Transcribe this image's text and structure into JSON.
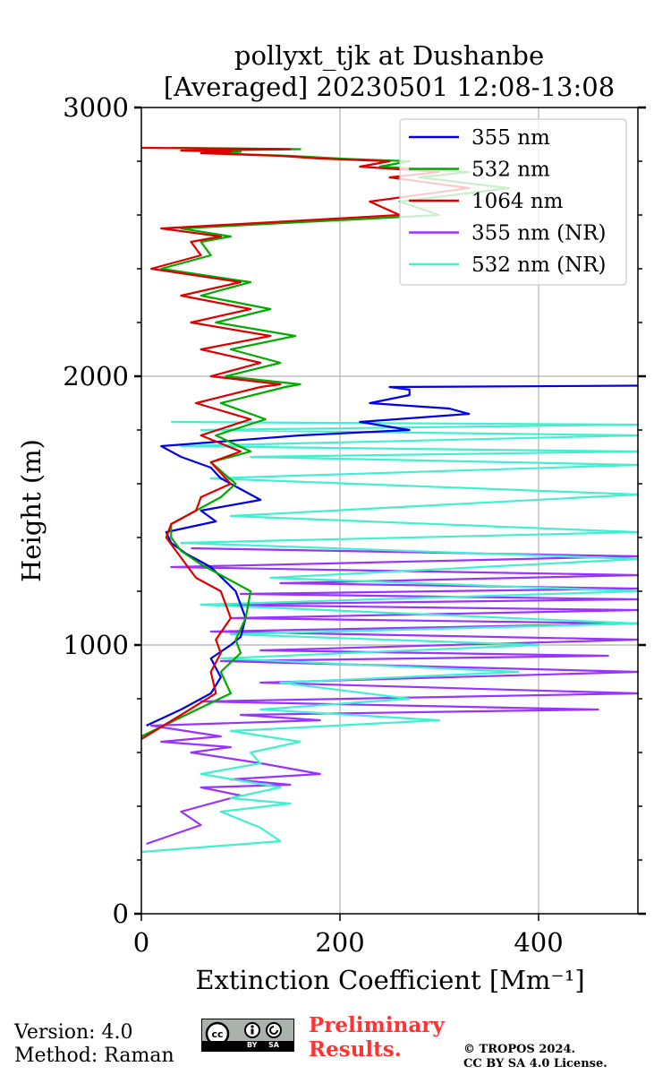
{
  "chart_data": {
    "type": "line",
    "title": "pollyxt_tjk at Dushanbe",
    "subtitle": "[Averaged] 20230501 12:08-13:08",
    "xlabel": "Extinction Coefficient [Mm⁻¹]",
    "ylabel": "Height (m)",
    "xlim": [
      0,
      500
    ],
    "ylim": [
      0,
      3000
    ],
    "xticks": [
      0,
      200,
      400
    ],
    "yticks": [
      0,
      1000,
      2000,
      3000
    ],
    "grid": true,
    "legend_position": "top-right",
    "series": [
      {
        "name": "355 nm",
        "color": "#0000e6",
        "x": [
          5,
          40,
          70,
          80,
          70,
          90,
          100,
          105,
          95,
          70,
          45,
          30,
          25,
          75,
          60,
          120,
          100,
          80,
          70,
          40,
          20,
          160,
          270,
          220,
          330,
          310,
          230,
          270,
          270,
          250,
          500
        ],
        "y": [
          700,
          760,
          820,
          880,
          950,
          1000,
          1030,
          1100,
          1200,
          1290,
          1340,
          1380,
          1420,
          1460,
          1500,
          1540,
          1580,
          1620,
          1660,
          1700,
          1740,
          1780,
          1800,
          1830,
          1860,
          1880,
          1900,
          1930,
          1950,
          1960,
          1965
        ]
      },
      {
        "name": "532 nm",
        "color": "#00aa00",
        "x": [
          0,
          45,
          90,
          80,
          100,
          95,
          105,
          110,
          85,
          60,
          40,
          30,
          30,
          55,
          80,
          95,
          70,
          110,
          75,
          125,
          80,
          145,
          160,
          85,
          140,
          90,
          155,
          75,
          130,
          60,
          110,
          20,
          70,
          60,
          90,
          40,
          300,
          260,
          370,
          280,
          330,
          240,
          270,
          200,
          150,
          70,
          100,
          60,
          160,
          30
        ],
        "y": [
          660,
          740,
          820,
          900,
          970,
          1020,
          1100,
          1200,
          1250,
          1300,
          1350,
          1400,
          1450,
          1500,
          1550,
          1600,
          1680,
          1720,
          1780,
          1840,
          1900,
          1960,
          1970,
          2000,
          2050,
          2100,
          2150,
          2200,
          2250,
          2300,
          2350,
          2400,
          2450,
          2500,
          2520,
          2550,
          2600,
          2650,
          2700,
          2740,
          2760,
          2780,
          2800,
          2810,
          2820,
          2830,
          2835,
          2840,
          2845,
          2850
        ]
      },
      {
        "name": "1064 nm",
        "color": "#dd0000",
        "x": [
          0,
          40,
          75,
          70,
          80,
          75,
          90,
          80,
          55,
          45,
          35,
          25,
          30,
          55,
          60,
          90,
          70,
          100,
          60,
          110,
          55,
          120,
          140,
          70,
          120,
          60,
          130,
          50,
          110,
          40,
          100,
          10,
          60,
          50,
          80,
          20,
          260,
          230,
          330,
          250,
          300,
          220,
          250,
          180,
          140,
          60,
          90,
          40,
          150,
          0
        ],
        "y": [
          650,
          740,
          820,
          900,
          970,
          1020,
          1100,
          1200,
          1250,
          1300,
          1350,
          1400,
          1450,
          1500,
          1550,
          1600,
          1680,
          1720,
          1780,
          1840,
          1900,
          1960,
          1970,
          2000,
          2050,
          2100,
          2150,
          2200,
          2250,
          2300,
          2350,
          2400,
          2450,
          2500,
          2520,
          2550,
          2600,
          2650,
          2700,
          2740,
          2760,
          2780,
          2800,
          2810,
          2820,
          2830,
          2835,
          2840,
          2845,
          2850
        ]
      },
      {
        "name": "355 nm (NR)",
        "color": "#9933ff",
        "x": [
          5,
          60,
          40,
          100,
          60,
          150,
          90,
          180,
          120,
          50,
          90,
          20,
          80,
          10,
          180,
          100,
          460,
          60,
          500,
          120,
          500,
          80,
          470,
          120,
          500,
          70,
          500,
          90,
          500,
          60,
          500,
          100,
          500,
          140,
          500,
          30,
          500,
          50
        ],
        "y": [
          260,
          330,
          380,
          440,
          470,
          480,
          500,
          520,
          560,
          600,
          620,
          640,
          660,
          700,
          720,
          740,
          760,
          790,
          820,
          860,
          900,
          940,
          960,
          980,
          1020,
          1050,
          1080,
          1100,
          1130,
          1150,
          1170,
          1190,
          1210,
          1230,
          1260,
          1290,
          1330,
          1360
        ]
      },
      {
        "name": "532 nm (NR)",
        "color": "#40f0d0",
        "x": [
          0,
          140,
          120,
          80,
          150,
          90,
          140,
          60,
          120,
          110,
          160,
          90,
          300,
          120,
          270,
          140,
          380,
          80,
          400,
          90,
          500,
          60,
          500,
          130,
          500,
          40,
          500,
          90,
          500,
          70,
          500,
          110,
          500,
          40,
          500,
          60,
          500,
          30
        ],
        "y": [
          230,
          270,
          320,
          380,
          410,
          430,
          470,
          520,
          560,
          600,
          640,
          680,
          720,
          760,
          800,
          860,
          900,
          950,
          1000,
          1040,
          1080,
          1150,
          1200,
          1250,
          1320,
          1380,
          1420,
          1480,
          1560,
          1620,
          1670,
          1700,
          1720,
          1740,
          1780,
          1800,
          1820,
          1830
        ]
      }
    ]
  },
  "footer": {
    "version": "Version: 4.0",
    "method": "Method: Raman",
    "preliminary_line1": "Preliminary",
    "preliminary_line2": "Results.",
    "copyright_line1": "© TROPOS 2024.",
    "copyright_line2": "CC BY SA 4.0 License.",
    "license_badge": "cc BY SA"
  }
}
